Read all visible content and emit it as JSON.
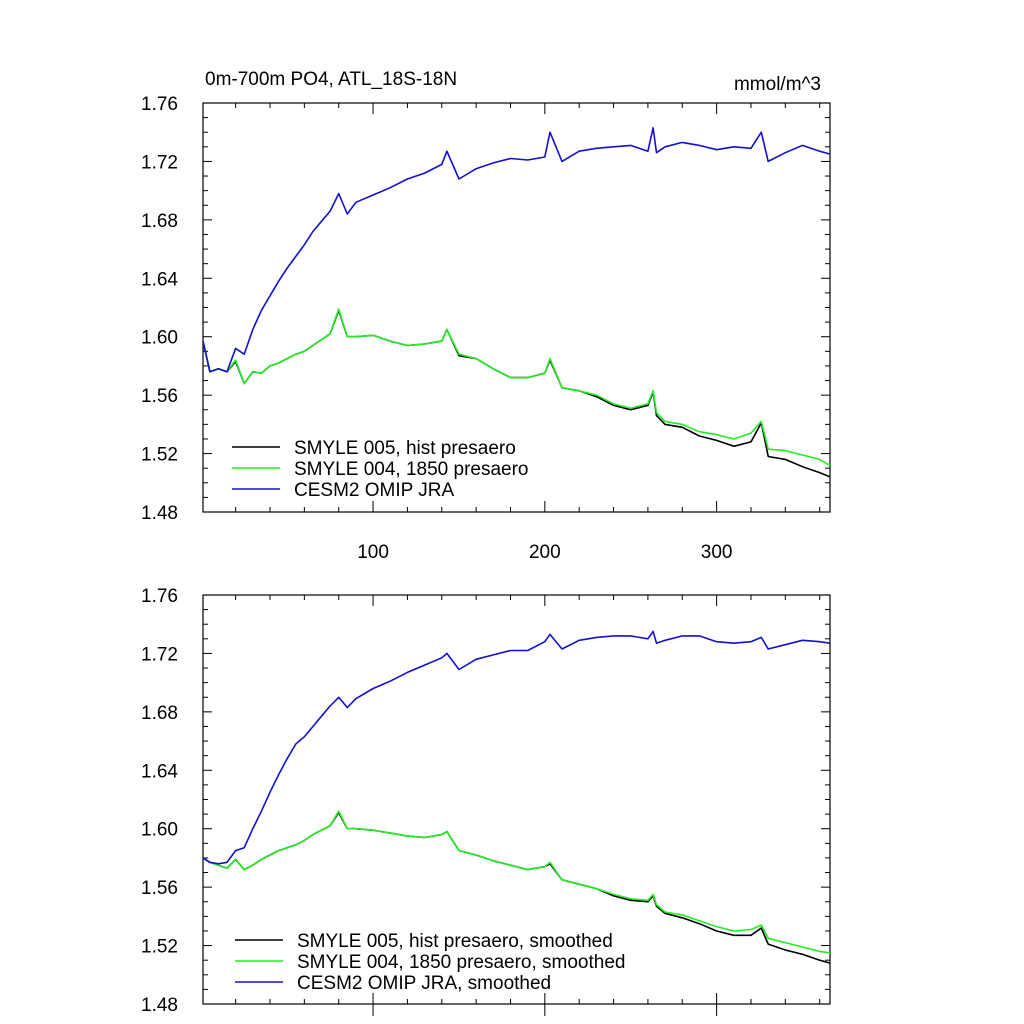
{
  "chart_data": [
    {
      "type": "line",
      "title": "0m-700m PO4, ATL_18S-18N",
      "units": "mmol/m^3",
      "xlim": [
        1,
        366
      ],
      "ylim": [
        1.48,
        1.76
      ],
      "xticks": [
        100,
        200,
        300
      ],
      "xticklabels": [
        "100",
        "200",
        "300"
      ],
      "yticks": [
        1.48,
        1.52,
        1.56,
        1.6,
        1.64,
        1.68,
        1.72,
        1.76
      ],
      "yticklabels": [
        "1.48",
        "1.52",
        "1.56",
        "1.60",
        "1.64",
        "1.68",
        "1.72",
        "1.76"
      ],
      "legend_position": "bottom-left",
      "series": [
        {
          "name": "SMYLE 005, hist presaero",
          "color": "#000000",
          "x": [
            1,
            5,
            10,
            15,
            20,
            25,
            30,
            35,
            40,
            45,
            50,
            55,
            60,
            65,
            70,
            75,
            80,
            85,
            90,
            100,
            110,
            120,
            130,
            140,
            143,
            150,
            160,
            170,
            180,
            190,
            200,
            203,
            210,
            220,
            230,
            240,
            250,
            260,
            263,
            265,
            270,
            280,
            290,
            300,
            310,
            320,
            326,
            330,
            340,
            350,
            360,
            366
          ],
          "y": [
            1.597,
            1.576,
            1.578,
            1.576,
            1.583,
            1.568,
            1.576,
            1.575,
            1.58,
            1.582,
            1.585,
            1.588,
            1.59,
            1.594,
            1.598,
            1.602,
            1.618,
            1.6,
            1.6,
            1.601,
            1.597,
            1.594,
            1.595,
            1.597,
            1.605,
            1.587,
            1.585,
            1.578,
            1.572,
            1.572,
            1.575,
            1.584,
            1.565,
            1.563,
            1.559,
            1.553,
            1.55,
            1.553,
            1.562,
            1.546,
            1.54,
            1.538,
            1.532,
            1.529,
            1.525,
            1.528,
            1.541,
            1.518,
            1.516,
            1.511,
            1.507,
            1.504
          ]
        },
        {
          "name": "SMYLE 004, 1850 presaero",
          "color": "#22ee22",
          "x": [
            1,
            5,
            10,
            15,
            20,
            25,
            30,
            35,
            40,
            45,
            50,
            55,
            60,
            65,
            70,
            75,
            80,
            85,
            90,
            100,
            110,
            120,
            130,
            140,
            143,
            150,
            160,
            170,
            180,
            190,
            200,
            203,
            210,
            220,
            230,
            240,
            250,
            260,
            263,
            265,
            270,
            280,
            290,
            300,
            310,
            320,
            326,
            330,
            340,
            350,
            360,
            366
          ],
          "y": [
            1.597,
            1.576,
            1.578,
            1.576,
            1.584,
            1.568,
            1.576,
            1.575,
            1.58,
            1.582,
            1.585,
            1.588,
            1.59,
            1.594,
            1.598,
            1.602,
            1.619,
            1.6,
            1.6,
            1.601,
            1.597,
            1.594,
            1.595,
            1.597,
            1.605,
            1.588,
            1.585,
            1.578,
            1.572,
            1.572,
            1.575,
            1.585,
            1.565,
            1.563,
            1.56,
            1.554,
            1.551,
            1.554,
            1.563,
            1.548,
            1.542,
            1.54,
            1.535,
            1.533,
            1.53,
            1.534,
            1.542,
            1.523,
            1.522,
            1.519,
            1.516,
            1.512
          ]
        },
        {
          "name": "CESM2 OMIP JRA",
          "color": "#1111cc",
          "x": [
            1,
            5,
            10,
            15,
            20,
            25,
            30,
            35,
            40,
            45,
            50,
            55,
            60,
            65,
            70,
            75,
            80,
            85,
            90,
            100,
            110,
            120,
            130,
            140,
            143,
            150,
            160,
            170,
            180,
            190,
            200,
            203,
            210,
            220,
            230,
            240,
            250,
            260,
            263,
            265,
            270,
            280,
            290,
            300,
            310,
            320,
            326,
            330,
            340,
            350,
            360,
            366
          ],
          "y": [
            1.597,
            1.576,
            1.578,
            1.576,
            1.592,
            1.588,
            1.605,
            1.618,
            1.628,
            1.638,
            1.647,
            1.655,
            1.663,
            1.672,
            1.679,
            1.686,
            1.698,
            1.684,
            1.692,
            1.697,
            1.702,
            1.708,
            1.712,
            1.718,
            1.727,
            1.708,
            1.715,
            1.719,
            1.722,
            1.721,
            1.723,
            1.74,
            1.72,
            1.727,
            1.729,
            1.73,
            1.731,
            1.727,
            1.743,
            1.726,
            1.73,
            1.733,
            1.731,
            1.728,
            1.73,
            1.729,
            1.74,
            1.72,
            1.726,
            1.731,
            1.727,
            1.725
          ]
        }
      ]
    },
    {
      "type": "line",
      "xlim": [
        1,
        366
      ],
      "ylim": [
        1.48,
        1.76
      ],
      "xticks": [
        100,
        200,
        300
      ],
      "xticklabels": [],
      "yticks": [
        1.48,
        1.52,
        1.56,
        1.6,
        1.64,
        1.68,
        1.72,
        1.76
      ],
      "yticklabels": [
        "1.48",
        "1.52",
        "1.56",
        "1.60",
        "1.64",
        "1.68",
        "1.72",
        "1.76"
      ],
      "legend_position": "bottom-left",
      "series": [
        {
          "name": "SMYLE 005, hist presaero, smoothed",
          "color": "#000000",
          "x": [
            1,
            5,
            10,
            15,
            20,
            25,
            30,
            35,
            40,
            45,
            50,
            55,
            60,
            65,
            70,
            75,
            80,
            85,
            90,
            100,
            110,
            120,
            130,
            140,
            143,
            150,
            160,
            170,
            180,
            190,
            200,
            203,
            210,
            220,
            230,
            240,
            250,
            260,
            263,
            265,
            270,
            280,
            290,
            300,
            310,
            320,
            326,
            330,
            340,
            350,
            360,
            366
          ],
          "y": [
            1.58,
            1.577,
            1.575,
            1.573,
            1.579,
            1.572,
            1.575,
            1.579,
            1.582,
            1.585,
            1.587,
            1.589,
            1.592,
            1.596,
            1.599,
            1.602,
            1.611,
            1.6,
            1.6,
            1.599,
            1.597,
            1.595,
            1.594,
            1.596,
            1.598,
            1.585,
            1.582,
            1.578,
            1.575,
            1.572,
            1.574,
            1.576,
            1.565,
            1.562,
            1.559,
            1.554,
            1.551,
            1.55,
            1.554,
            1.547,
            1.542,
            1.539,
            1.535,
            1.53,
            1.527,
            1.527,
            1.532,
            1.521,
            1.517,
            1.514,
            1.51,
            1.508
          ]
        },
        {
          "name": "SMYLE 004, 1850 presaero, smoothed",
          "color": "#22ee22",
          "x": [
            1,
            5,
            10,
            15,
            20,
            25,
            30,
            35,
            40,
            45,
            50,
            55,
            60,
            65,
            70,
            75,
            80,
            85,
            90,
            100,
            110,
            120,
            130,
            140,
            143,
            150,
            160,
            170,
            180,
            190,
            200,
            203,
            210,
            220,
            230,
            240,
            250,
            260,
            263,
            265,
            270,
            280,
            290,
            300,
            310,
            320,
            326,
            330,
            340,
            350,
            360,
            366
          ],
          "y": [
            1.58,
            1.577,
            1.575,
            1.573,
            1.579,
            1.572,
            1.575,
            1.579,
            1.582,
            1.585,
            1.587,
            1.589,
            1.592,
            1.596,
            1.599,
            1.602,
            1.612,
            1.6,
            1.6,
            1.599,
            1.597,
            1.595,
            1.594,
            1.596,
            1.598,
            1.585,
            1.582,
            1.578,
            1.575,
            1.572,
            1.574,
            1.577,
            1.565,
            1.562,
            1.559,
            1.555,
            1.552,
            1.551,
            1.555,
            1.548,
            1.543,
            1.541,
            1.537,
            1.533,
            1.53,
            1.531,
            1.534,
            1.525,
            1.522,
            1.519,
            1.516,
            1.515
          ]
        },
        {
          "name": "CESM2 OMIP JRA, smoothed",
          "color": "#1111cc",
          "x": [
            1,
            5,
            10,
            15,
            20,
            25,
            30,
            35,
            40,
            45,
            50,
            55,
            60,
            65,
            70,
            75,
            80,
            85,
            90,
            100,
            110,
            120,
            130,
            140,
            143,
            150,
            160,
            170,
            180,
            190,
            200,
            203,
            210,
            220,
            230,
            240,
            250,
            260,
            263,
            265,
            270,
            280,
            290,
            300,
            310,
            320,
            326,
            330,
            340,
            350,
            360,
            366
          ],
          "y": [
            1.58,
            1.577,
            1.576,
            1.577,
            1.585,
            1.587,
            1.6,
            1.612,
            1.625,
            1.637,
            1.648,
            1.658,
            1.663,
            1.67,
            1.677,
            1.684,
            1.69,
            1.683,
            1.689,
            1.696,
            1.701,
            1.707,
            1.712,
            1.717,
            1.72,
            1.709,
            1.716,
            1.719,
            1.722,
            1.722,
            1.728,
            1.733,
            1.723,
            1.729,
            1.731,
            1.732,
            1.732,
            1.73,
            1.735,
            1.727,
            1.729,
            1.732,
            1.732,
            1.728,
            1.727,
            1.728,
            1.731,
            1.723,
            1.726,
            1.729,
            1.728,
            1.727
          ]
        }
      ]
    }
  ]
}
